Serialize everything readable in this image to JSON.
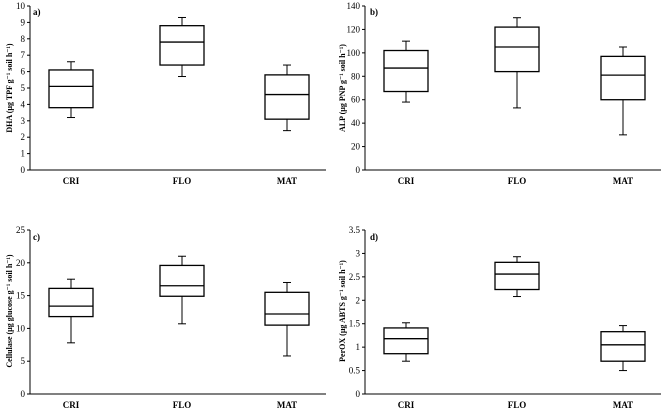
{
  "chart_data": [
    {
      "panel_label": "a)",
      "type": "box",
      "ylabel": "DHA (µg TPF g⁻¹ soil h⁻¹)",
      "ylim": [
        0,
        10
      ],
      "yticks": [
        "0",
        "1",
        "2",
        "3",
        "4",
        "5",
        "6",
        "7",
        "8",
        "9",
        "10"
      ],
      "categories": [
        "CRI",
        "FLO",
        "MAT"
      ],
      "boxes": [
        {
          "min": 3.2,
          "q1": 3.8,
          "median": 5.1,
          "q3": 6.1,
          "max": 6.6
        },
        {
          "min": 5.7,
          "q1": 6.4,
          "median": 7.8,
          "q3": 8.8,
          "max": 9.3
        },
        {
          "min": 2.4,
          "q1": 3.1,
          "median": 4.6,
          "q3": 5.8,
          "max": 6.4
        }
      ]
    },
    {
      "panel_label": "b)",
      "type": "box",
      "ylabel": "ALP (µg PNP g⁻¹ soil h⁻¹)",
      "ylim": [
        0,
        140
      ],
      "yticks": [
        "0",
        "20",
        "40",
        "60",
        "80",
        "100",
        "120",
        "140"
      ],
      "categories": [
        "CRI",
        "FLO",
        "MAT"
      ],
      "boxes": [
        {
          "min": 58,
          "q1": 67,
          "median": 87,
          "q3": 102,
          "max": 110
        },
        {
          "min": 53,
          "q1": 84,
          "median": 105,
          "q3": 122,
          "max": 130
        },
        {
          "min": 30,
          "q1": 60,
          "median": 81,
          "q3": 97,
          "max": 105
        }
      ]
    },
    {
      "panel_label": "c)",
      "type": "box",
      "ylabel": "Cellulase (µg glucose g⁻¹ soil h⁻¹)",
      "ylim": [
        0,
        25
      ],
      "yticks": [
        "0",
        "5",
        "10",
        "15",
        "20",
        "25"
      ],
      "categories": [
        "CRI",
        "FLO",
        "MAT"
      ],
      "boxes": [
        {
          "min": 7.8,
          "q1": 11.8,
          "median": 13.4,
          "q3": 16.1,
          "max": 17.5
        },
        {
          "min": 10.7,
          "q1": 14.9,
          "median": 16.5,
          "q3": 19.6,
          "max": 21.0
        },
        {
          "min": 5.8,
          "q1": 10.5,
          "median": 12.2,
          "q3": 15.5,
          "max": 17.0
        }
      ]
    },
    {
      "panel_label": "d)",
      "type": "box",
      "ylabel": "PerOX (µg ABTS g⁻¹ soil h⁻¹)",
      "ylim": [
        0,
        3.5
      ],
      "yticks": [
        "0",
        "0.5",
        "1",
        "1.5",
        "2",
        "2.5",
        "3",
        "3.5"
      ],
      "categories": [
        "CRI",
        "FLO",
        "MAT"
      ],
      "boxes": [
        {
          "min": 0.7,
          "q1": 0.86,
          "median": 1.18,
          "q3": 1.41,
          "max": 1.52
        },
        {
          "min": 2.08,
          "q1": 2.23,
          "median": 2.56,
          "q3": 2.81,
          "max": 2.93
        },
        {
          "min": 0.5,
          "q1": 0.7,
          "median": 1.05,
          "q3": 1.33,
          "max": 1.46
        }
      ]
    }
  ]
}
